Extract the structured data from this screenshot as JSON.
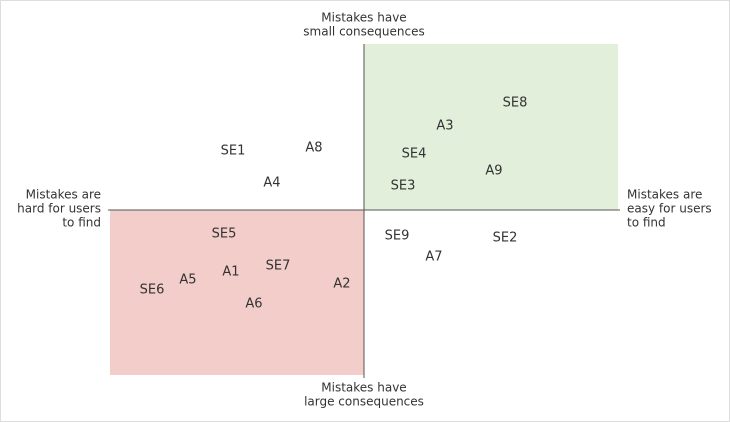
{
  "axes": {
    "top": [
      "Mistakes have",
      "small consequences"
    ],
    "bottom": [
      "Mistakes have",
      "large consequences"
    ],
    "left": [
      "Mistakes are",
      "hard for users",
      "to find"
    ],
    "right": [
      "Mistakes are",
      "easy for users",
      "to find"
    ]
  },
  "points": [
    "SE8",
    "A3",
    "SE4",
    "A9",
    "SE3",
    "SE1",
    "A8",
    "A4",
    "SE5",
    "SE9",
    "SE2",
    "A7",
    "SE7",
    "A1",
    "A5",
    "SE6",
    "A2",
    "A6"
  ]
}
